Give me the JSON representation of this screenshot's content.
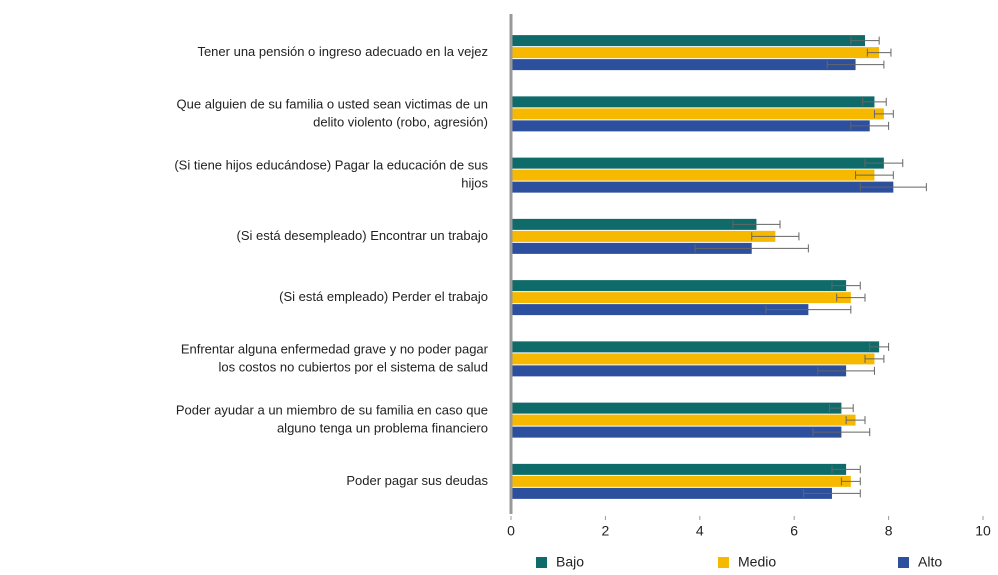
{
  "chart_data": {
    "type": "hbar",
    "categories": [
      [
        "Tener una pensión o ingreso adecuado en la vejez"
      ],
      [
        "Que alguien de su familia o usted sean victimas de un",
        "delito violento (robo, agresión)"
      ],
      [
        "(Si tiene hijos educándose) Pagar la educación de sus",
        "hijos"
      ],
      [
        "(Si está desempleado) Encontrar un trabajo"
      ],
      [
        "(Si está empleado) Perder el trabajo"
      ],
      [
        "Enfrentar alguna enfermedad grave y no poder pagar",
        "los costos no cubiertos por el sistema de salud"
      ],
      [
        "Poder ayudar a un miembro de su familia en caso que",
        "alguno tenga un problema financiero"
      ],
      [
        "Poder pagar sus deudas"
      ]
    ],
    "series": [
      {
        "name": "Bajo",
        "color": "#0f6a6a",
        "values": [
          7.5,
          7.7,
          7.9,
          5.2,
          7.1,
          7.8,
          7.0,
          7.1
        ],
        "errors": [
          0.3,
          0.25,
          0.4,
          0.5,
          0.3,
          0.2,
          0.25,
          0.3
        ]
      },
      {
        "name": "Medio",
        "color": "#f6b900",
        "values": [
          7.8,
          7.9,
          7.7,
          5.6,
          7.2,
          7.7,
          7.3,
          7.2
        ],
        "errors": [
          0.25,
          0.2,
          0.4,
          0.5,
          0.3,
          0.2,
          0.2,
          0.2
        ]
      },
      {
        "name": "Alto",
        "color": "#2c4f9e",
        "values": [
          7.3,
          7.6,
          8.1,
          5.1,
          6.3,
          7.1,
          7.0,
          6.8
        ],
        "errors": [
          0.6,
          0.4,
          0.7,
          1.2,
          0.9,
          0.6,
          0.6,
          0.6
        ]
      }
    ],
    "xlim": [
      0,
      10
    ],
    "xticks": [
      0,
      2,
      4,
      6,
      8,
      10
    ],
    "legend": "bottom"
  }
}
